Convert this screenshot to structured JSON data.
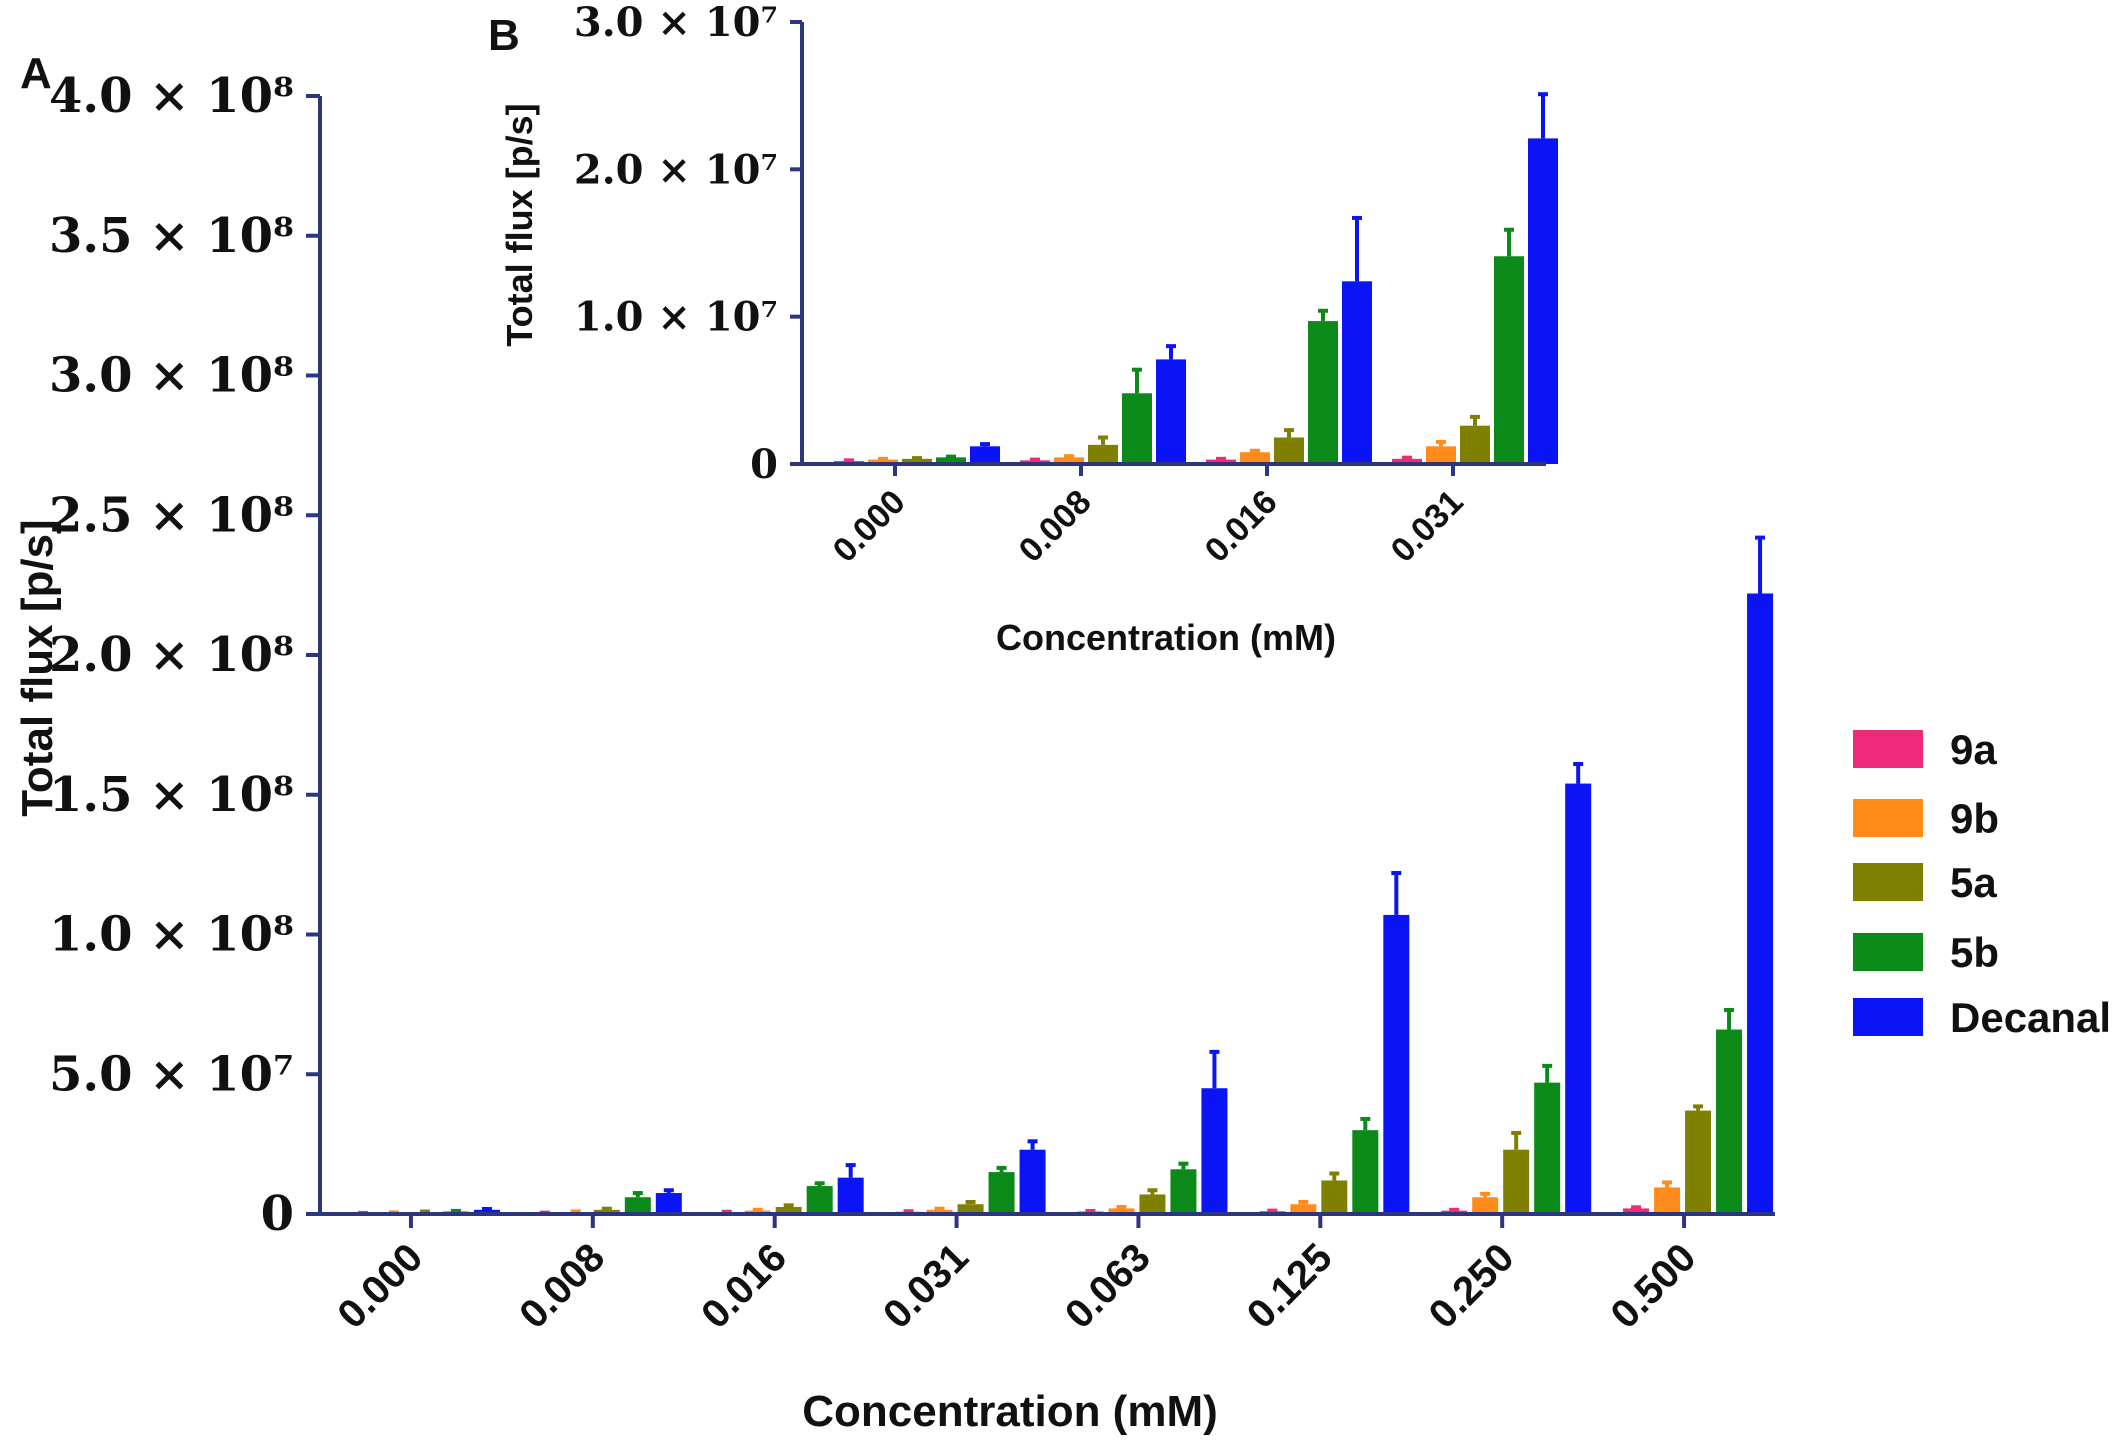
{
  "panel_labels": [
    "A",
    "B"
  ],
  "legend_items": [
    "9a",
    "9b",
    "5a",
    "5b",
    "Decanal"
  ],
  "chart_data": [
    {
      "type": "bar",
      "panel": "A",
      "title": "",
      "xlabel": "Concentration (mM)",
      "ylabel": "Total flux [p/s]",
      "categories": [
        "0.000",
        "0.008",
        "0.016",
        "0.031",
        "0.063",
        "0.125",
        "0.250",
        "0.500"
      ],
      "ylim": [
        0,
        400000000
      ],
      "yticks": [
        0,
        50000000,
        100000000,
        150000000,
        200000000,
        250000000,
        300000000,
        350000000,
        400000000
      ],
      "yticklabels": [
        "0",
        "5.0 × 10⁷",
        "1.0 × 10⁸",
        "1.5 × 10⁸",
        "2.0 × 10⁸",
        "2.5 × 10⁸",
        "3.0 × 10⁸",
        "3.5 × 10⁸",
        "4.0 × 10⁸"
      ],
      "legend_position": "right",
      "grid": false,
      "series": [
        {
          "name": "9a",
          "color": "#ee2a7b",
          "values": [
            300000,
            400000,
            600000,
            800000,
            900000,
            1000000,
            1200000,
            2000000
          ],
          "errors": [
            100000,
            100000,
            200000,
            200000,
            200000,
            200000,
            300000,
            400000
          ]
        },
        {
          "name": "9b",
          "color": "#ff8c1a",
          "values": [
            500000,
            700000,
            1200000,
            1500000,
            2000000,
            3500000,
            6000000,
            9500000
          ],
          "errors": [
            100000,
            200000,
            300000,
            400000,
            500000,
            800000,
            1200000,
            1800000
          ]
        },
        {
          "name": "5a",
          "color": "#808000",
          "values": [
            700000,
            1500000,
            2500000,
            3500000,
            7000000,
            12000000,
            23000000,
            37000000
          ],
          "errors": [
            200000,
            400000,
            600000,
            800000,
            1500000,
            2500000,
            6000000,
            1500000
          ]
        },
        {
          "name": "5b",
          "color": "#0b8a1a",
          "values": [
            900000,
            6000000,
            10000000,
            15000000,
            16000000,
            30000000,
            47000000,
            66000000
          ],
          "errors": [
            200000,
            1500000,
            1000000,
            1500000,
            2000000,
            4000000,
            6000000,
            7000000
          ]
        },
        {
          "name": "Decanal",
          "color": "#0a14f5",
          "values": [
            1500000,
            7500000,
            13000000,
            23000000,
            45000000,
            107000000,
            154000000,
            222000000
          ],
          "errors": [
            300000,
            1000000,
            4500000,
            3000000,
            13000000,
            15000000,
            7000000,
            20000000
          ]
        }
      ]
    },
    {
      "type": "bar",
      "panel": "B",
      "title": "",
      "xlabel": "Concentration (mM)",
      "ylabel": "Total flux [p/s]",
      "categories": [
        "0.000",
        "0.008",
        "0.016",
        "0.031"
      ],
      "ylim": [
        0,
        30000000
      ],
      "yticks": [
        0,
        10000000,
        20000000,
        30000000
      ],
      "yticklabels": [
        "0",
        "1.0 × 10⁷",
        "2.0 × 10⁷",
        "3.0 × 10⁷"
      ],
      "grid": false,
      "series": [
        {
          "name": "9a",
          "color": "#ee2a7b",
          "values": [
            200000,
            250000,
            300000,
            350000
          ],
          "errors": [
            50000,
            50000,
            50000,
            80000
          ]
        },
        {
          "name": "9b",
          "color": "#ff8c1a",
          "values": [
            300000,
            450000,
            800000,
            1200000
          ],
          "errors": [
            50000,
            80000,
            100000,
            300000
          ]
        },
        {
          "name": "5a",
          "color": "#808000",
          "values": [
            350000,
            1300000,
            1800000,
            2600000
          ],
          "errors": [
            50000,
            500000,
            500000,
            600000
          ]
        },
        {
          "name": "5b",
          "color": "#0b8a1a",
          "values": [
            450000,
            4800000,
            9700000,
            14100000
          ],
          "errors": [
            50000,
            1600000,
            700000,
            1800000
          ]
        },
        {
          "name": "Decanal",
          "color": "#0a14f5",
          "values": [
            1200000,
            7100000,
            12400000,
            22100000
          ],
          "errors": [
            150000,
            900000,
            4300000,
            3000000
          ]
        }
      ]
    }
  ]
}
